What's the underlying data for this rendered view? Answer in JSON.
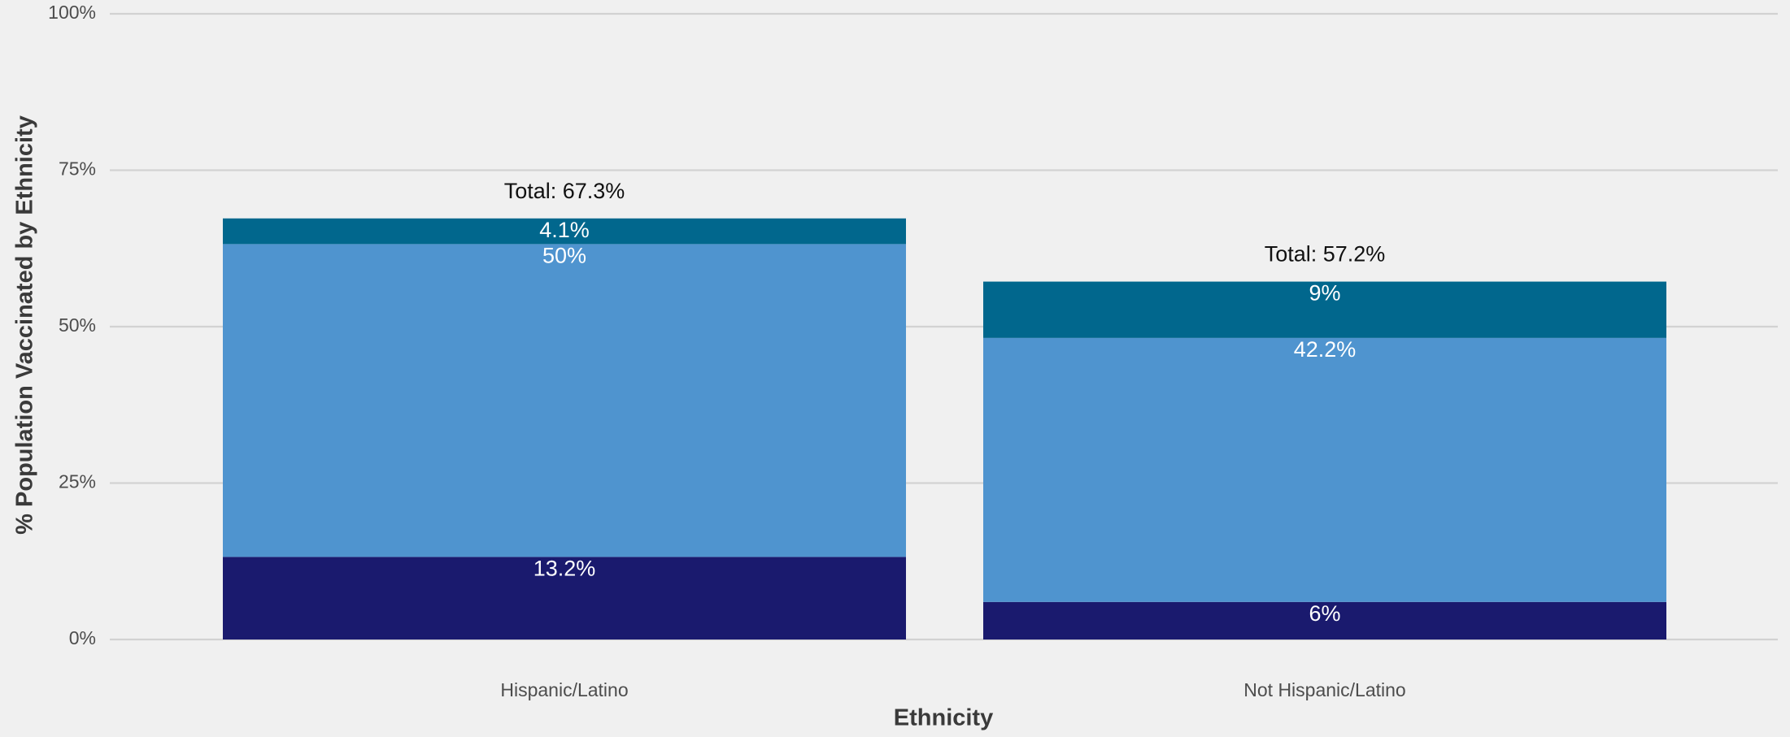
{
  "chart_data": {
    "type": "bar",
    "stacked": true,
    "title": "",
    "xlabel": "Ethnicity",
    "ylabel": "% Population Vaccinated by Ethnicity",
    "ylim": [
      0,
      100
    ],
    "y_ticks": [
      0,
      25,
      50,
      75,
      100
    ],
    "y_tick_labels": [
      "0%",
      "25%",
      "50%",
      "75%",
      "100%"
    ],
    "grid": true,
    "legend": "none",
    "categories": [
      "Hispanic/Latino",
      "Not Hispanic/Latino"
    ],
    "series": [
      {
        "color": "#1a1a6e",
        "values": [
          13.2,
          6.0
        ],
        "labels": [
          "13.2%",
          "6%"
        ]
      },
      {
        "color": "#4f94cf",
        "values": [
          50.0,
          42.2
        ],
        "labels": [
          "50%",
          "42.2%"
        ]
      },
      {
        "color": "#01678d",
        "values": [
          4.1,
          9.0
        ],
        "labels": [
          "4.1%",
          "9%"
        ]
      }
    ],
    "totals": [
      67.3,
      57.2
    ],
    "total_labels": [
      "Total: 67.3%",
      "Total: 57.2%"
    ]
  },
  "colors": {
    "background": "#f0f0f0",
    "gridline": "#d2d2d2"
  }
}
